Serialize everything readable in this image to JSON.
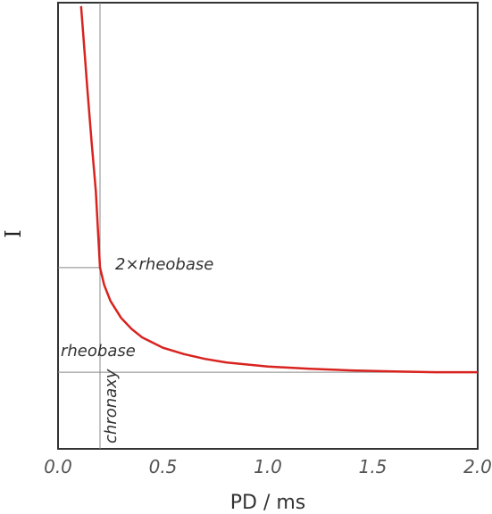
{
  "chart_data": {
    "type": "line",
    "xlabel": "PD / ms",
    "ylabel": "I",
    "xlim": [
      0.0,
      2.0
    ],
    "ylim": [
      -1.1,
      5.3
    ],
    "x_ticks": [
      "0.0",
      "0.5",
      "1.0",
      "1.5",
      "2.0"
    ],
    "grid": false,
    "rheobase": 0.0,
    "chronaxie": 0.2,
    "series": [
      {
        "color": "#d8231f",
        "x": [
          0.11,
          0.12,
          0.14,
          0.16,
          0.18,
          0.2,
          0.22,
          0.25,
          0.3,
          0.35,
          0.4,
          0.5,
          0.6,
          0.7,
          0.8,
          1.0,
          1.2,
          1.4,
          1.6,
          1.8,
          2.0
        ],
        "y": [
          5.25,
          4.85,
          4.05,
          3.3,
          2.6,
          1.5,
          1.25,
          1.02,
          0.78,
          0.62,
          0.5,
          0.35,
          0.26,
          0.19,
          0.14,
          0.08,
          0.05,
          0.025,
          0.01,
          0.0,
          0.0
        ]
      }
    ],
    "annotations": {
      "rheobase_label": "rheobase",
      "double_rheobase_label": "2×rheobase",
      "chronaxie_label": "chronaxy"
    }
  }
}
